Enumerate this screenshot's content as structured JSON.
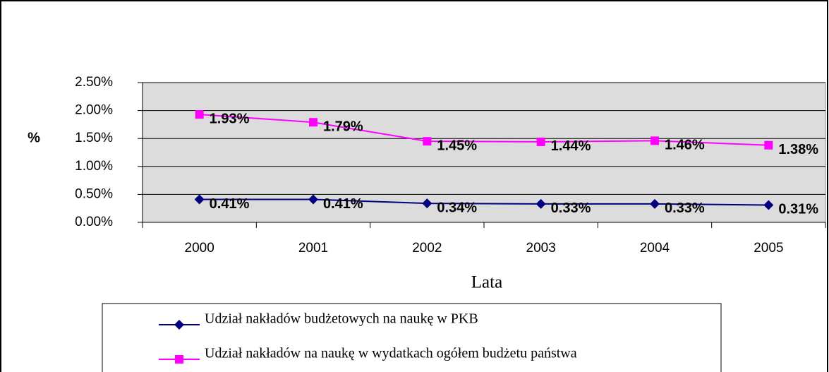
{
  "chart_data": {
    "type": "line",
    "y_axis_label": "%",
    "x_axis_label": "Lata",
    "categories": [
      "2000",
      "2001",
      "2002",
      "2003",
      "2004",
      "2005"
    ],
    "series": [
      {
        "name": "Udział nakładów budżetowych na naukę w PKB",
        "color": "#000080",
        "marker": "diamond",
        "values": [
          0.41,
          0.41,
          0.34,
          0.33,
          0.33,
          0.31
        ],
        "value_labels": [
          "0.41%",
          "0.41%",
          "0.34%",
          "0.33%",
          "0.33%",
          "0.31%"
        ]
      },
      {
        "name": "Udział nakładów na naukę w wydatkach ogółem budżetu państwa",
        "color": "#ff00ff",
        "marker": "square",
        "values": [
          1.93,
          1.79,
          1.45,
          1.44,
          1.46,
          1.38
        ],
        "value_labels": [
          "1.93%",
          "1.79%",
          "1.45%",
          "1.44%",
          "1.46%",
          "1.38%"
        ]
      }
    ],
    "ylim": [
      0,
      2.5
    ],
    "yticks": [
      {
        "value": 0,
        "label": "0.00%"
      },
      {
        "value": 0.5,
        "label": "0.50%"
      },
      {
        "value": 1,
        "label": "1.00%"
      },
      {
        "value": 1.5,
        "label": "1.50%"
      },
      {
        "value": 2,
        "label": "2.00%"
      },
      {
        "value": 2.5,
        "label": "2.50%"
      }
    ],
    "grid": true,
    "legend": "bottom"
  }
}
